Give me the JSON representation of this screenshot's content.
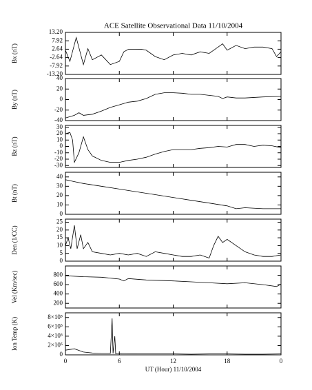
{
  "chart_data": [
    {
      "type": "line",
      "title": "ACE Satellite Observational Data   11/10/2004",
      "ylabel": "Bx (nT)",
      "x": [
        0,
        0.5,
        1.2,
        2,
        2.5,
        3,
        4,
        5,
        6,
        6.5,
        7,
        8.5,
        9,
        10,
        11,
        12,
        13,
        14,
        15,
        16,
        17,
        17.5,
        18,
        19,
        20,
        21,
        22,
        23,
        23.5,
        24
      ],
      "values": [
        2,
        -5,
        10,
        -7,
        3,
        -4,
        -1,
        -7,
        -5,
        1,
        2.5,
        2.6,
        2,
        -2,
        -4,
        -1,
        0,
        -1,
        1,
        0,
        4,
        6,
        2,
        5,
        3,
        4,
        4,
        3,
        -2,
        1
      ],
      "ylim": [
        -13.2,
        13.2
      ],
      "yticks": [
        {
          "value": 13.2,
          "label": "13.20"
        },
        7.92,
        2.64,
        -2.64,
        -7.92,
        {
          "value": -13.2,
          "label": "-13.20"
        }
      ]
    },
    {
      "type": "line",
      "ylabel": "By (nT)",
      "x": [
        0,
        1,
        1.5,
        2,
        3,
        4,
        5,
        6,
        7,
        8,
        9,
        10,
        11,
        12,
        13,
        14,
        15,
        16,
        17,
        17.5,
        18,
        19,
        20,
        22,
        24
      ],
      "values": [
        -35,
        -30,
        -25,
        -30,
        -28,
        -22,
        -15,
        -10,
        -5,
        -3,
        2,
        10,
        13,
        13,
        12,
        10,
        10,
        8,
        6,
        2,
        5,
        3,
        3,
        5,
        6
      ],
      "ylim": [
        -40,
        40
      ],
      "yticks": [
        40,
        20,
        0,
        -20,
        -40
      ]
    },
    {
      "type": "line",
      "ylabel": "Bz (nT)",
      "x": [
        0,
        0.5,
        0.8,
        1,
        1.5,
        2,
        2.5,
        3,
        4,
        5,
        6,
        7,
        8,
        9,
        10,
        11,
        12,
        13,
        14,
        15,
        16,
        17,
        18,
        19,
        20,
        21,
        22,
        23,
        24
      ],
      "values": [
        20,
        22,
        10,
        -25,
        -10,
        15,
        -5,
        -15,
        -22,
        -25,
        -25,
        -22,
        -20,
        -17,
        -12,
        -8,
        -5,
        -5,
        -5,
        -3,
        -2,
        0,
        -1,
        3,
        3,
        0,
        2,
        1,
        -2
      ],
      "ylim": [
        -33,
        33
      ],
      "yticks": [
        30,
        20,
        10,
        0,
        -10,
        -20,
        -30
      ]
    },
    {
      "type": "line",
      "ylabel": "Bt (nT)",
      "x": [
        0,
        1,
        2,
        4,
        6,
        8,
        10,
        12,
        14,
        16,
        18,
        19,
        20,
        22,
        24
      ],
      "values": [
        37,
        35,
        33,
        30,
        27,
        24,
        21,
        18,
        15,
        12,
        9,
        6,
        7,
        6,
        6
      ],
      "ylim": [
        0,
        45
      ],
      "yticks": [
        40,
        30,
        20,
        10,
        0
      ]
    },
    {
      "type": "line",
      "ylabel": "Den (1/CC)",
      "x": [
        0,
        0.3,
        0.6,
        1,
        1.3,
        1.7,
        2,
        2.5,
        3,
        4,
        5,
        6,
        7,
        8,
        9,
        10,
        11,
        12,
        13,
        14,
        15,
        16,
        16.5,
        17,
        17.5,
        18,
        19,
        20,
        21,
        22,
        23,
        24
      ],
      "values": [
        10,
        15,
        8,
        23,
        8,
        17,
        8,
        12,
        6,
        5,
        4,
        5,
        4,
        5,
        3,
        6,
        5,
        4,
        3,
        3,
        4,
        2,
        10,
        16,
        12,
        14,
        10,
        6,
        4,
        3,
        3,
        4
      ],
      "ylim": [
        0,
        27
      ],
      "yticks": [
        25,
        20,
        15,
        10,
        5,
        0
      ]
    },
    {
      "type": "line",
      "ylabel": "Vel (Km/sec)",
      "x": [
        0,
        2,
        4,
        6,
        6.5,
        7,
        9,
        12,
        14,
        16,
        18,
        20,
        22,
        23.5,
        24
      ],
      "values": [
        790,
        770,
        760,
        720,
        680,
        730,
        700,
        680,
        660,
        640,
        620,
        640,
        600,
        560,
        610
      ],
      "ylim": [
        100,
        1000
      ],
      "yticks": [
        800,
        600,
        400,
        200
      ]
    },
    {
      "type": "line",
      "ylabel": "Ion Temp (K)",
      "xlabel": "UT (Hour)  11/10/2004",
      "x": [
        0,
        1,
        2,
        3,
        4,
        5,
        5.2,
        5.3,
        5.5,
        5.6,
        6,
        8,
        10,
        12,
        14,
        16,
        18,
        20,
        22,
        24
      ],
      "values": [
        100000,
        130000,
        60000,
        40000,
        30000,
        30000,
        780000,
        30000,
        400000,
        20000,
        30000,
        20000,
        20000,
        20000,
        15000,
        20000,
        20000,
        15000,
        15000,
        20000
      ],
      "ylim": [
        0,
        900000
      ],
      "yticks": [
        {
          "value": 800000,
          "label": "8×10⁵"
        },
        {
          "value": 600000,
          "label": "6×10⁵"
        },
        {
          "value": 400000,
          "label": "4×10⁵"
        },
        {
          "value": 200000,
          "label": "2×10⁵"
        },
        0
      ],
      "xlim": [
        0,
        24
      ],
      "xticks": [
        0,
        6,
        12,
        18,
        {
          "value": 24,
          "label": "0"
        }
      ]
    }
  ]
}
